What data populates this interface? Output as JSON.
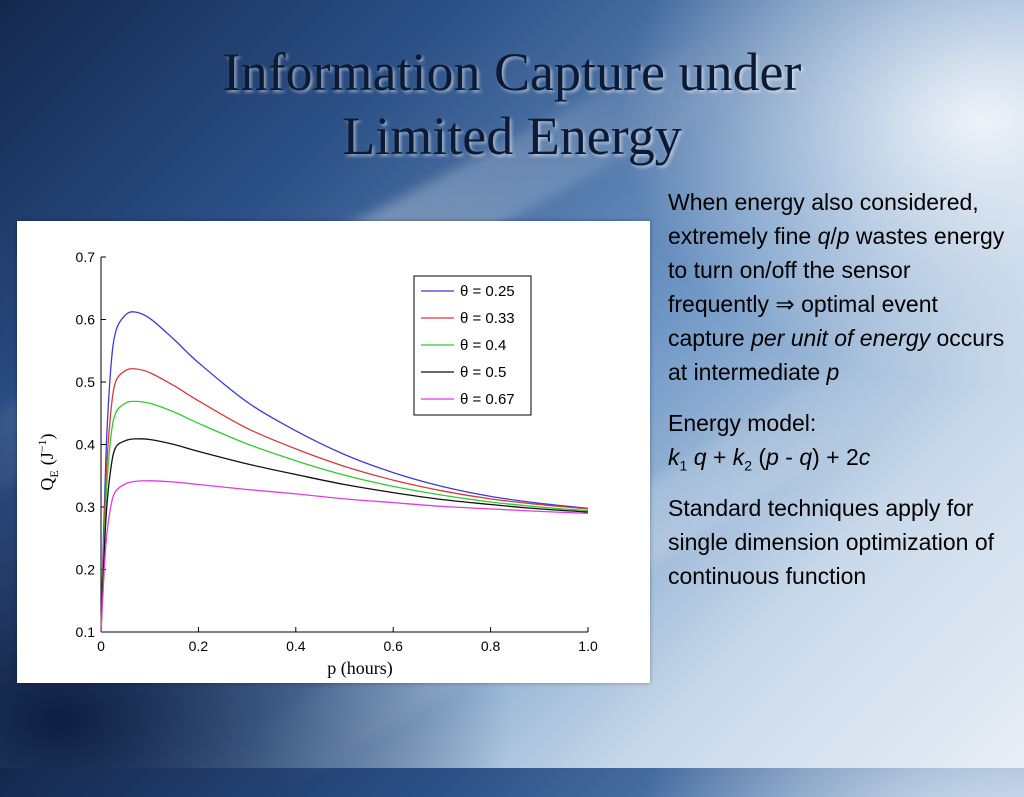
{
  "slide": {
    "title_line1": "Information Capture under",
    "title_line2": "Limited Energy"
  },
  "text": {
    "para1": {
      "a": "When energy also considered, extremely fine ",
      "q": "q",
      "slash": "/",
      "p": "p",
      "b": " wastes energy to turn on/off the sensor frequently ",
      "implies": "⇒",
      "c": " optimal event capture ",
      "em": "per unit of energy",
      "d": " occurs at intermediate ",
      "p2": "p"
    },
    "para2": {
      "heading": "Energy model:",
      "k1": "k",
      "k1_sub": "1",
      "q1": "q",
      "plus1": " + ",
      "k2": "k",
      "k2_sub": "2",
      "open": " (",
      "p": "p",
      "minus": " - ",
      "q2": "q",
      "close": ") + 2",
      "c": "c"
    },
    "para3": "Standard techniques apply for single dimension optimization of continuous function"
  },
  "chart_data": {
    "type": "line",
    "xlabel": "p (hours)",
    "ylabel_main": "Q",
    "ylabel_sub": "E",
    "ylabel_unit": "(J",
    "ylabel_sup": "−1",
    "ylabel_end": ")",
    "xlim": [
      0,
      1.0
    ],
    "ylim": [
      0.1,
      0.7
    ],
    "xticks": [
      "0",
      "0.2",
      "0.4",
      "0.6",
      "0.8",
      "1.0"
    ],
    "yticks": [
      "0.1",
      "0.2",
      "0.3",
      "0.4",
      "0.5",
      "0.6",
      "0.7"
    ],
    "legend_position": "top-right",
    "x": [
      0,
      0.01,
      0.02,
      0.03,
      0.05,
      0.07,
      0.1,
      0.15,
      0.2,
      0.3,
      0.4,
      0.5,
      0.6,
      0.7,
      0.8,
      0.9,
      1.0
    ],
    "series": [
      {
        "name": "θ = 0.25",
        "color": "#3b3bdb",
        "values": [
          0.1,
          0.38,
          0.52,
          0.58,
          0.607,
          0.612,
          0.602,
          0.568,
          0.531,
          0.468,
          0.422,
          0.384,
          0.355,
          0.333,
          0.317,
          0.306,
          0.298
        ]
      },
      {
        "name": "θ = 0.33",
        "color": "#d63a3a",
        "values": [
          0.1,
          0.34,
          0.45,
          0.5,
          0.518,
          0.521,
          0.515,
          0.494,
          0.47,
          0.426,
          0.393,
          0.365,
          0.343,
          0.326,
          0.313,
          0.304,
          0.297
        ]
      },
      {
        "name": "θ = 0.4",
        "color": "#2ecc2e",
        "values": [
          0.1,
          0.31,
          0.41,
          0.45,
          0.466,
          0.469,
          0.466,
          0.452,
          0.434,
          0.401,
          0.374,
          0.351,
          0.333,
          0.319,
          0.308,
          0.3,
          0.294
        ]
      },
      {
        "name": "θ = 0.5",
        "color": "#111111",
        "values": [
          0.1,
          0.28,
          0.36,
          0.395,
          0.406,
          0.409,
          0.408,
          0.4,
          0.389,
          0.369,
          0.352,
          0.336,
          0.323,
          0.312,
          0.304,
          0.297,
          0.292
        ]
      },
      {
        "name": "θ = 0.67",
        "color": "#e23be2",
        "values": [
          0.1,
          0.24,
          0.3,
          0.325,
          0.337,
          0.341,
          0.342,
          0.34,
          0.336,
          0.328,
          0.321,
          0.313,
          0.307,
          0.301,
          0.297,
          0.293,
          0.29
        ]
      }
    ]
  }
}
